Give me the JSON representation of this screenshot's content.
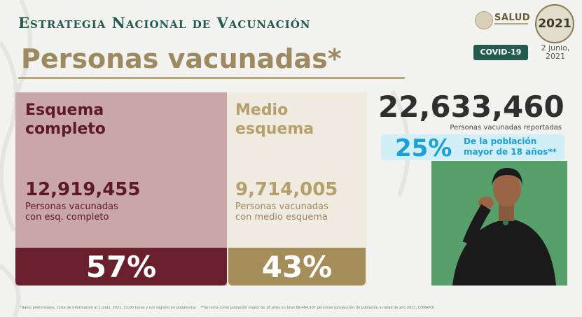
{
  "header": {
    "title": "Estrategia Nacional de Vacunación",
    "subtitle": "Personas vacunadas*",
    "salud_label": "SALUD",
    "year_badge": "2021",
    "covid_badge": "COVID-19",
    "date_line1": "2 junio,",
    "date_line2": "2021"
  },
  "complete_scheme": {
    "label_line1": "Esquema",
    "label_line2": "completo",
    "count": "12,919,455",
    "caption_line1": "Personas vacunadas",
    "caption_line2": "con esq. completo",
    "percent": "57%",
    "percent_value": 57
  },
  "half_scheme": {
    "label_line1": "Medio",
    "label_line2": "esquema",
    "count": "9,714,005",
    "caption_line1": "Personas vacunadas",
    "caption_line2": "con medio esquema",
    "percent": "43%",
    "percent_value": 43
  },
  "total": {
    "count": "22,633,460",
    "caption": "Personas vacunadas reportadas"
  },
  "population": {
    "percent": "25%",
    "text_line1": "De la población",
    "text_line2": "mayor de 18 años**"
  },
  "footnotes": {
    "note1": "*Datos preliminares, corte de información al 1 junio, 2021, 21:00 horas y con registro en plataforma.",
    "note2": "**Se toma como población mayor de 18 años un total 89,484,507 personas (proyección de población a mitad de año 2021, CONAPO)"
  },
  "colors": {
    "green": "#235b4e",
    "gold": "#9e8a5f",
    "maroon": "#6a1f2d",
    "blue": "#1a9fd6"
  }
}
